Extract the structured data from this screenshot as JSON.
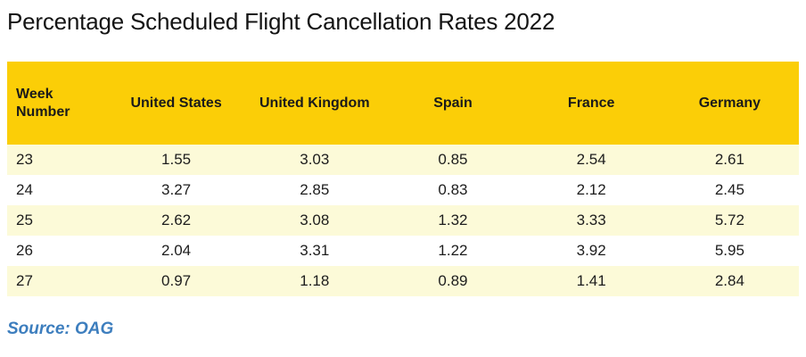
{
  "title": "Percentage Scheduled Flight Cancellation Rates 2022",
  "source": "Source: OAG",
  "colors": {
    "header_bg": "#FBCE07",
    "row_alt_bg": "#FCFAD8",
    "source_text": "#3D7EBE",
    "title_text": "#141414"
  },
  "table": {
    "columns": [
      {
        "label": "Week Number"
      },
      {
        "label": "United States"
      },
      {
        "label": "United Kingdom"
      },
      {
        "label": "Spain"
      },
      {
        "label": "France"
      },
      {
        "label": "Germany"
      }
    ],
    "rows": [
      {
        "week": "23",
        "values": [
          "1.55",
          "3.03",
          "0.85",
          "2.54",
          "2.61"
        ]
      },
      {
        "week": "24",
        "values": [
          "3.27",
          "2.85",
          "0.83",
          "2.12",
          "2.45"
        ]
      },
      {
        "week": "25",
        "values": [
          "2.62",
          "3.08",
          "1.32",
          "3.33",
          "5.72"
        ]
      },
      {
        "week": "26",
        "values": [
          "2.04",
          "3.31",
          "1.22",
          "3.92",
          "5.95"
        ]
      },
      {
        "week": "27",
        "values": [
          "0.97",
          "1.18",
          "0.89",
          "1.41",
          "2.84"
        ]
      }
    ]
  },
  "chart_data": {
    "type": "table",
    "title": "Percentage Scheduled Flight Cancellation Rates 2022",
    "xlabel": "Week Number",
    "categories": [
      23,
      24,
      25,
      26,
      27
    ],
    "series": [
      {
        "name": "United States",
        "values": [
          1.55,
          3.27,
          2.62,
          2.04,
          0.97
        ]
      },
      {
        "name": "United Kingdom",
        "values": [
          3.03,
          2.85,
          3.08,
          3.31,
          1.18
        ]
      },
      {
        "name": "Spain",
        "values": [
          0.85,
          0.83,
          1.32,
          1.22,
          0.89
        ]
      },
      {
        "name": "France",
        "values": [
          2.54,
          2.12,
          3.33,
          3.92,
          1.41
        ]
      },
      {
        "name": "Germany",
        "values": [
          2.61,
          2.45,
          5.72,
          5.95,
          2.84
        ]
      }
    ],
    "source": "OAG",
    "legend_position": "header-row",
    "grid": false
  }
}
